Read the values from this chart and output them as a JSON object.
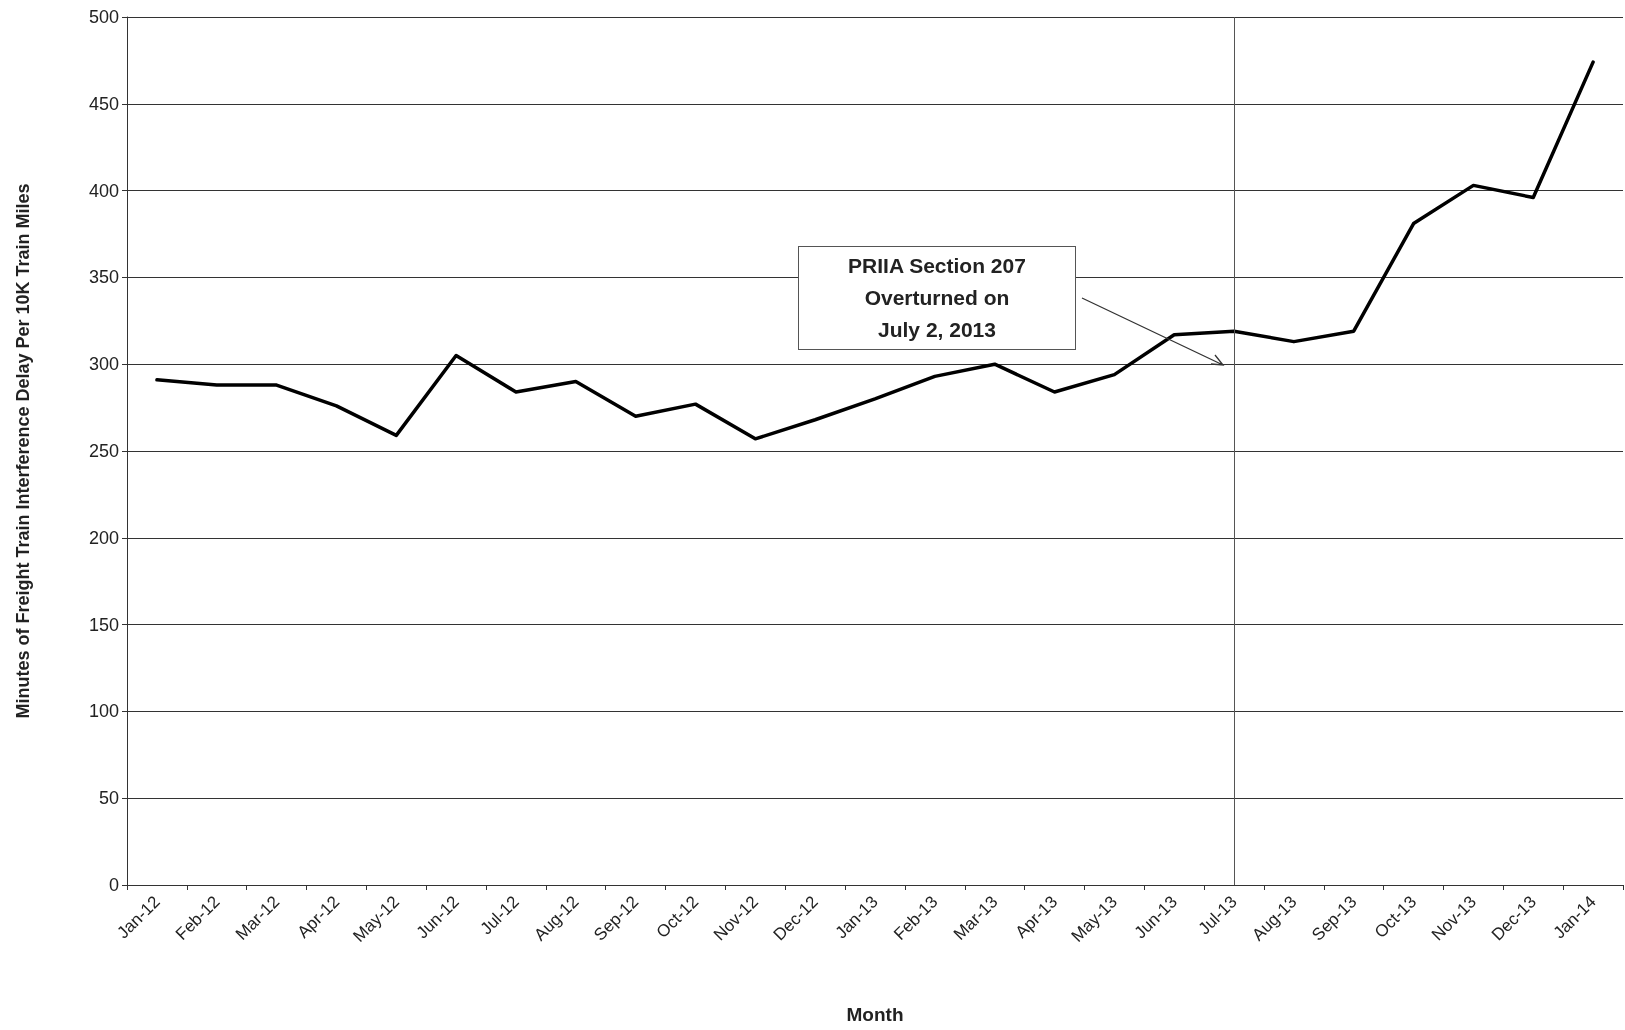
{
  "chart_data": {
    "type": "line",
    "xlabel": "Month",
    "ylabel": "Minutes of Freight Train Interference Delay Per 10K Train Miles",
    "categories": [
      "Jan-12",
      "Feb-12",
      "Mar-12",
      "Apr-12",
      "May-12",
      "Jun-12",
      "Jul-12",
      "Aug-12",
      "Sep-12",
      "Oct-12",
      "Nov-12",
      "Dec-12",
      "Jan-13",
      "Feb-13",
      "Mar-13",
      "Apr-13",
      "May-13",
      "Jun-13",
      "Jul-13",
      "Aug-13",
      "Sep-13",
      "Oct-13",
      "Nov-13",
      "Dec-13",
      "Jan-14"
    ],
    "series": [
      {
        "color": "#000000",
        "values": [
          291,
          288,
          288,
          276,
          259,
          305,
          284,
          290,
          270,
          277,
          257,
          268,
          280,
          293,
          300,
          284,
          294,
          317,
          319,
          313,
          319,
          381,
          403,
          396,
          474
        ]
      }
    ],
    "ylim": [
      0,
      500
    ],
    "yticks": [
      0,
      50,
      100,
      150,
      200,
      250,
      300,
      350,
      400,
      450,
      500
    ],
    "grid": "y",
    "marker": "none",
    "line_style": "solid",
    "ref_lines": [
      {
        "axis": "x",
        "value": "Jul-13",
        "color": "#555555",
        "line_style": "solid"
      }
    ],
    "annotations": [
      "PRIIA Section 207\nOverturned on\nJuly 2, 2013"
    ]
  }
}
